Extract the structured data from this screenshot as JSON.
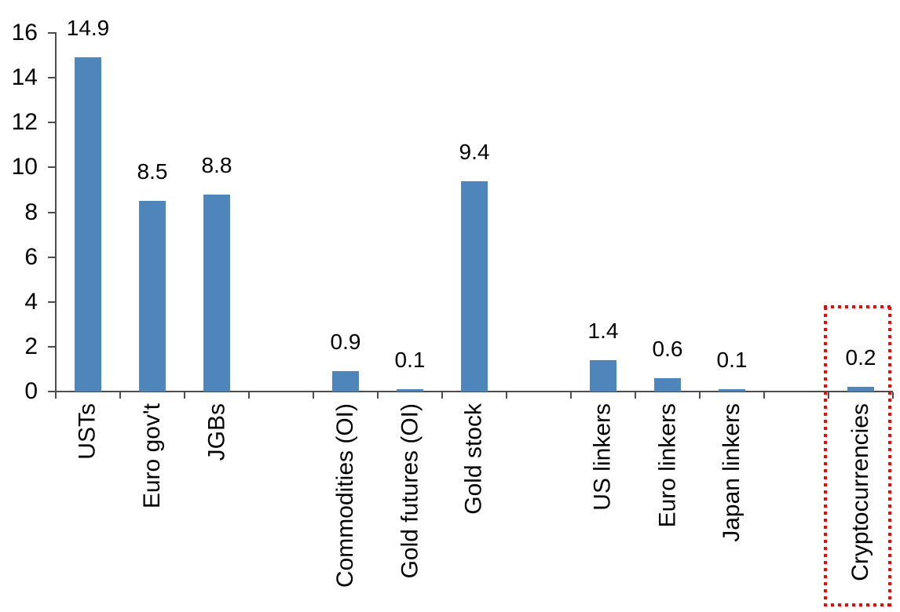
{
  "chart_data": {
    "type": "bar",
    "title": "",
    "xlabel": "",
    "ylabel": "",
    "categories": [
      "USTs",
      "Euro gov't",
      "JGBs",
      "",
      "Commodities (OI)",
      "Gold futures (OI)",
      "Gold stock",
      "",
      "US linkers",
      "Euro linkers",
      "Japan linkers",
      "",
      "Cryptocurrencies"
    ],
    "values": [
      14.9,
      8.5,
      8.8,
      null,
      0.9,
      0.1,
      9.4,
      null,
      1.4,
      0.6,
      0.1,
      null,
      0.2
    ],
    "data_labels": [
      "14.9",
      "8.5",
      "8.8",
      "",
      "0.9",
      "0.1",
      "9.4",
      "",
      "1.4",
      "0.6",
      "0.1",
      "",
      "0.2"
    ],
    "ylim": [
      0,
      16
    ],
    "yticks": [
      0,
      2,
      4,
      6,
      8,
      10,
      12,
      14,
      16
    ],
    "grid": false,
    "legend": false,
    "bar_color": "#4e86bc",
    "axis_color": "#4d4d4d",
    "text_color": "#000000",
    "highlight": {
      "category": "Cryptocurrencies",
      "shape": "dotted-rectangle",
      "color": "#ff0000"
    }
  }
}
